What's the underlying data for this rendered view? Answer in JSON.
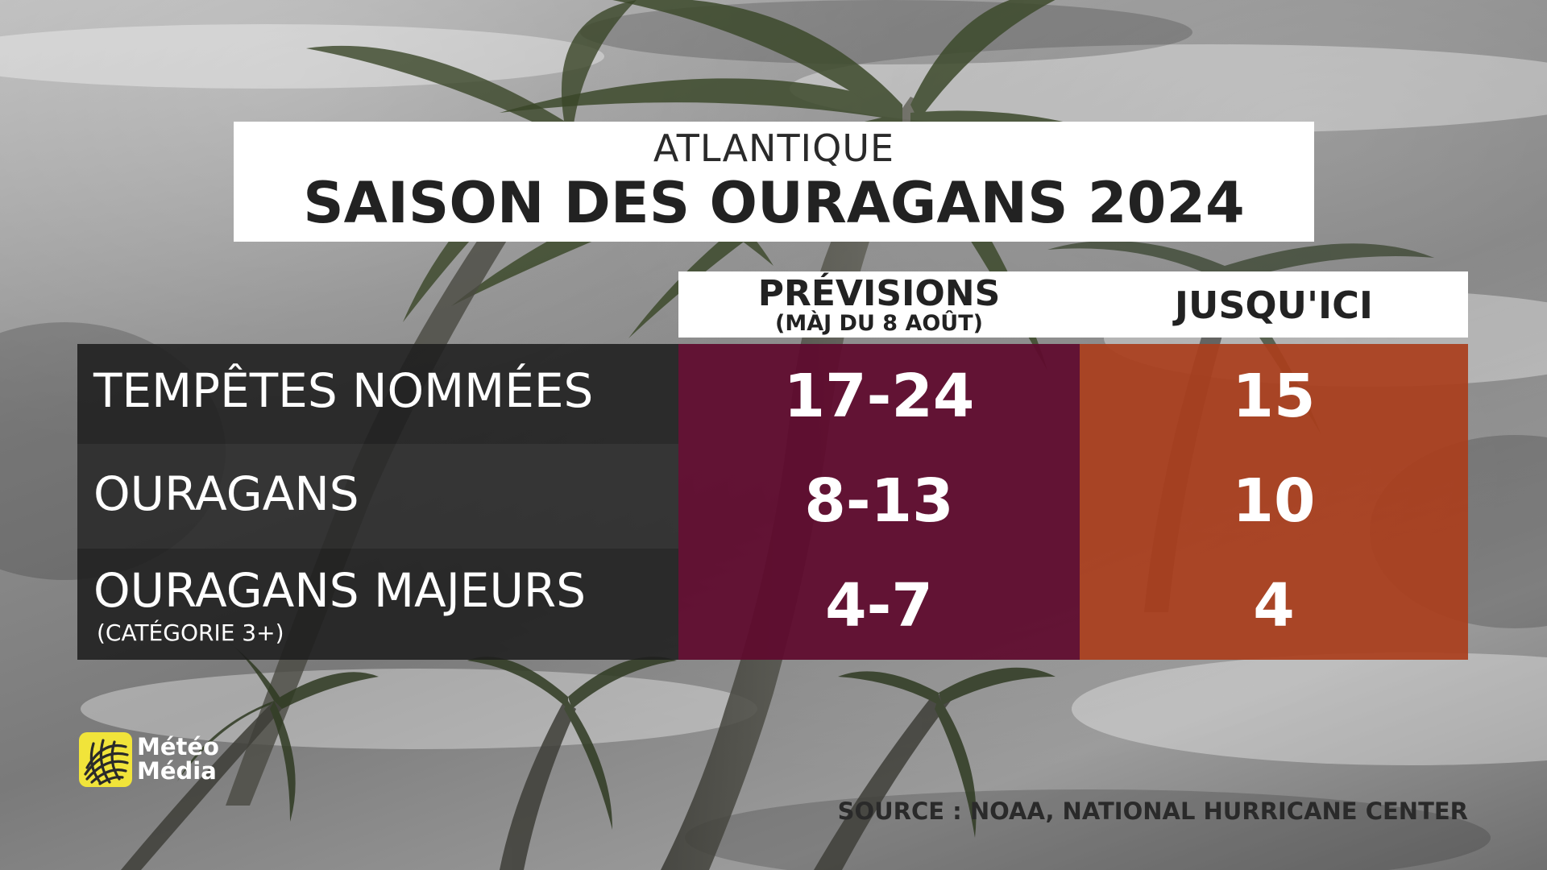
{
  "title": {
    "region": "ATLANTIQUE",
    "main": "SAISON DES OURAGANS 2024"
  },
  "columns": {
    "forecast": {
      "label": "PRÉVISIONS",
      "sublabel": "(MÀJ DU 8 AOÛT)"
    },
    "to_date": {
      "label": "JUSQU'ICI"
    }
  },
  "rows": [
    {
      "label": "TEMPÊTES NOMMÉES",
      "sublabel": "",
      "forecast": "17-24",
      "to_date": "15"
    },
    {
      "label": "OURAGANS",
      "sublabel": "",
      "forecast": "8-13",
      "to_date": "10"
    },
    {
      "label": "OURAGANS MAJEURS",
      "sublabel": "(CATÉGORIE 3+)",
      "forecast": "4-7",
      "to_date": "4"
    }
  ],
  "logo": {
    "line1": "Météo",
    "line2": "Média",
    "icon": "globe-icon"
  },
  "source": "SOURCE : NOAA, NATIONAL HURRICANE CENTER",
  "colors": {
    "forecast_column": "#5f0a2d",
    "to_date_column": "#aa3e1c",
    "label_column": "#1e1e1e",
    "header_background": "#ffffff",
    "logo_yellow": "#f1e43a"
  }
}
